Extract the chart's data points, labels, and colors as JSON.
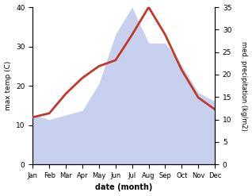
{
  "months": [
    "Jan",
    "Feb",
    "Mar",
    "Apr",
    "May",
    "Jun",
    "Jul",
    "Aug",
    "Sep",
    "Oct",
    "Nov",
    "Dec"
  ],
  "temp_max": [
    12.0,
    13.0,
    18.0,
    22.0,
    25.0,
    26.5,
    33.0,
    40.0,
    33.0,
    24.0,
    17.0,
    14.0
  ],
  "precip": [
    11.0,
    10.0,
    11.0,
    12.0,
    18.0,
    29.0,
    35.0,
    27.0,
    27.0,
    22.0,
    16.0,
    14.0
  ],
  "temp_color": "#c0392b",
  "precip_fill_color": "#c8d0f0",
  "temp_ylim": [
    0,
    40
  ],
  "precip_ylim": [
    0,
    35
  ],
  "temp_yticks": [
    0,
    10,
    20,
    30,
    40
  ],
  "precip_yticks": [
    0,
    5,
    10,
    15,
    20,
    25,
    30,
    35
  ],
  "xlabel": "date (month)",
  "ylabel_left": "max temp (C)",
  "ylabel_right": "med. precipitation (kg/m2)",
  "bg_color": "#ffffff",
  "linewidth": 2.0
}
